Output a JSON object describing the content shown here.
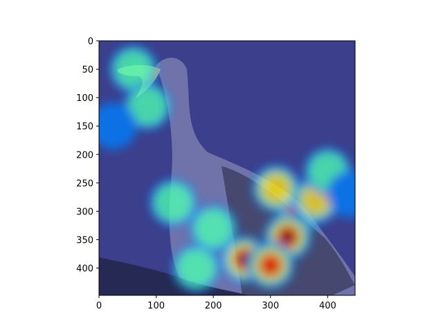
{
  "chart_data": {
    "type": "heatmap",
    "title": "",
    "xlabel": "",
    "ylabel": "",
    "image_size": [
      448,
      448
    ],
    "xlim": [
      0,
      448
    ],
    "ylim": [
      448,
      0
    ],
    "xticks": [
      0,
      100,
      200,
      300,
      400
    ],
    "yticks": [
      0,
      50,
      100,
      150,
      200,
      250,
      300,
      350,
      400
    ],
    "xtick_labels": [
      "0",
      "100",
      "200",
      "300",
      "400"
    ],
    "ytick_labels": [
      "0",
      "50",
      "100",
      "150",
      "200",
      "250",
      "300",
      "350",
      "400"
    ],
    "colormap": "jet",
    "overlay": "saliency heatmap over photo of a seagull",
    "hotspots": [
      {
        "x": 350,
        "y": 300,
        "intensity": 1.0
      },
      {
        "x": 330,
        "y": 345,
        "intensity": 0.95
      },
      {
        "x": 255,
        "y": 385,
        "intensity": 0.95
      },
      {
        "x": 300,
        "y": 395,
        "intensity": 0.85
      },
      {
        "x": 380,
        "y": 280,
        "intensity": 0.7
      },
      {
        "x": 310,
        "y": 260,
        "intensity": 0.6
      },
      {
        "x": 200,
        "y": 330,
        "intensity": 0.55
      },
      {
        "x": 130,
        "y": 285,
        "intensity": 0.5
      },
      {
        "x": 170,
        "y": 400,
        "intensity": 0.55
      },
      {
        "x": 400,
        "y": 230,
        "intensity": 0.45
      },
      {
        "x": 440,
        "y": 270,
        "intensity": 0.35
      },
      {
        "x": 60,
        "y": 50,
        "intensity": 0.45
      },
      {
        "x": 85,
        "y": 115,
        "intensity": 0.5
      },
      {
        "x": 25,
        "y": 150,
        "intensity": 0.35
      }
    ],
    "grid": false
  }
}
